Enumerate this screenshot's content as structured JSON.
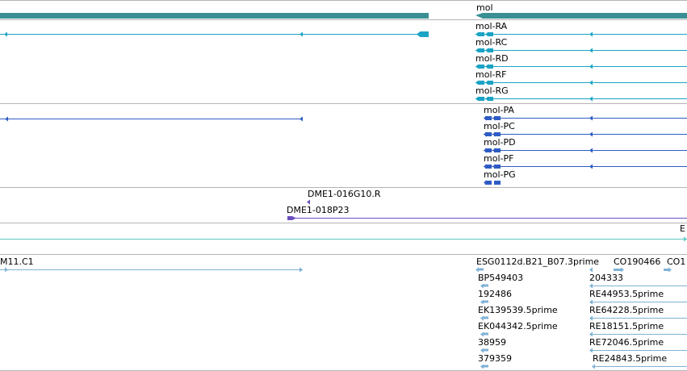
{
  "colors": {
    "gene": "#3a8f94",
    "transcript": "#1aa3c4",
    "protein": "#2f5cc4",
    "clone": "#6b4fbf",
    "est_light": "#5fc7c4",
    "est": "#7fb2d6",
    "separator": "#b4b4b4"
  },
  "tracks": {
    "gene": {
      "label": "mol"
    },
    "transcripts": [
      {
        "label": "mol-RA"
      },
      {
        "label": "mol-RC"
      },
      {
        "label": "mol-RD"
      },
      {
        "label": "mol-RF"
      },
      {
        "label": "mol-RG"
      }
    ],
    "proteins": [
      {
        "label": "mol-PA"
      },
      {
        "label": "mol-PC"
      },
      {
        "label": "mol-PD"
      },
      {
        "label": "mol-PF"
      },
      {
        "label": "mol-PG"
      }
    ],
    "clones": [
      {
        "label": "DME1-016G10.R"
      },
      {
        "label": "DME1-018P23"
      }
    ],
    "est_partial": {
      "label": "E"
    },
    "est": {
      "left_label": "M11.C1",
      "col1": [
        {
          "label": "ESG0112d.B21_B07.3prime"
        },
        {
          "label": "BP549403"
        },
        {
          "label": "192486"
        },
        {
          "label": "EK139539.5prime"
        },
        {
          "label": "EK044342.5prime"
        },
        {
          "label": "38959"
        },
        {
          "label": "379359"
        }
      ],
      "col2": [
        {
          "label": "CO190466"
        },
        {
          "label": "204333"
        },
        {
          "label": "RE44953.5prime"
        },
        {
          "label": "RE64228.5prime"
        },
        {
          "label": "RE18151.5prime"
        },
        {
          "label": "RE72046.5prime"
        },
        {
          "label": "RE24843.5prime"
        }
      ],
      "col3_partial": {
        "label": "CO1"
      }
    }
  }
}
